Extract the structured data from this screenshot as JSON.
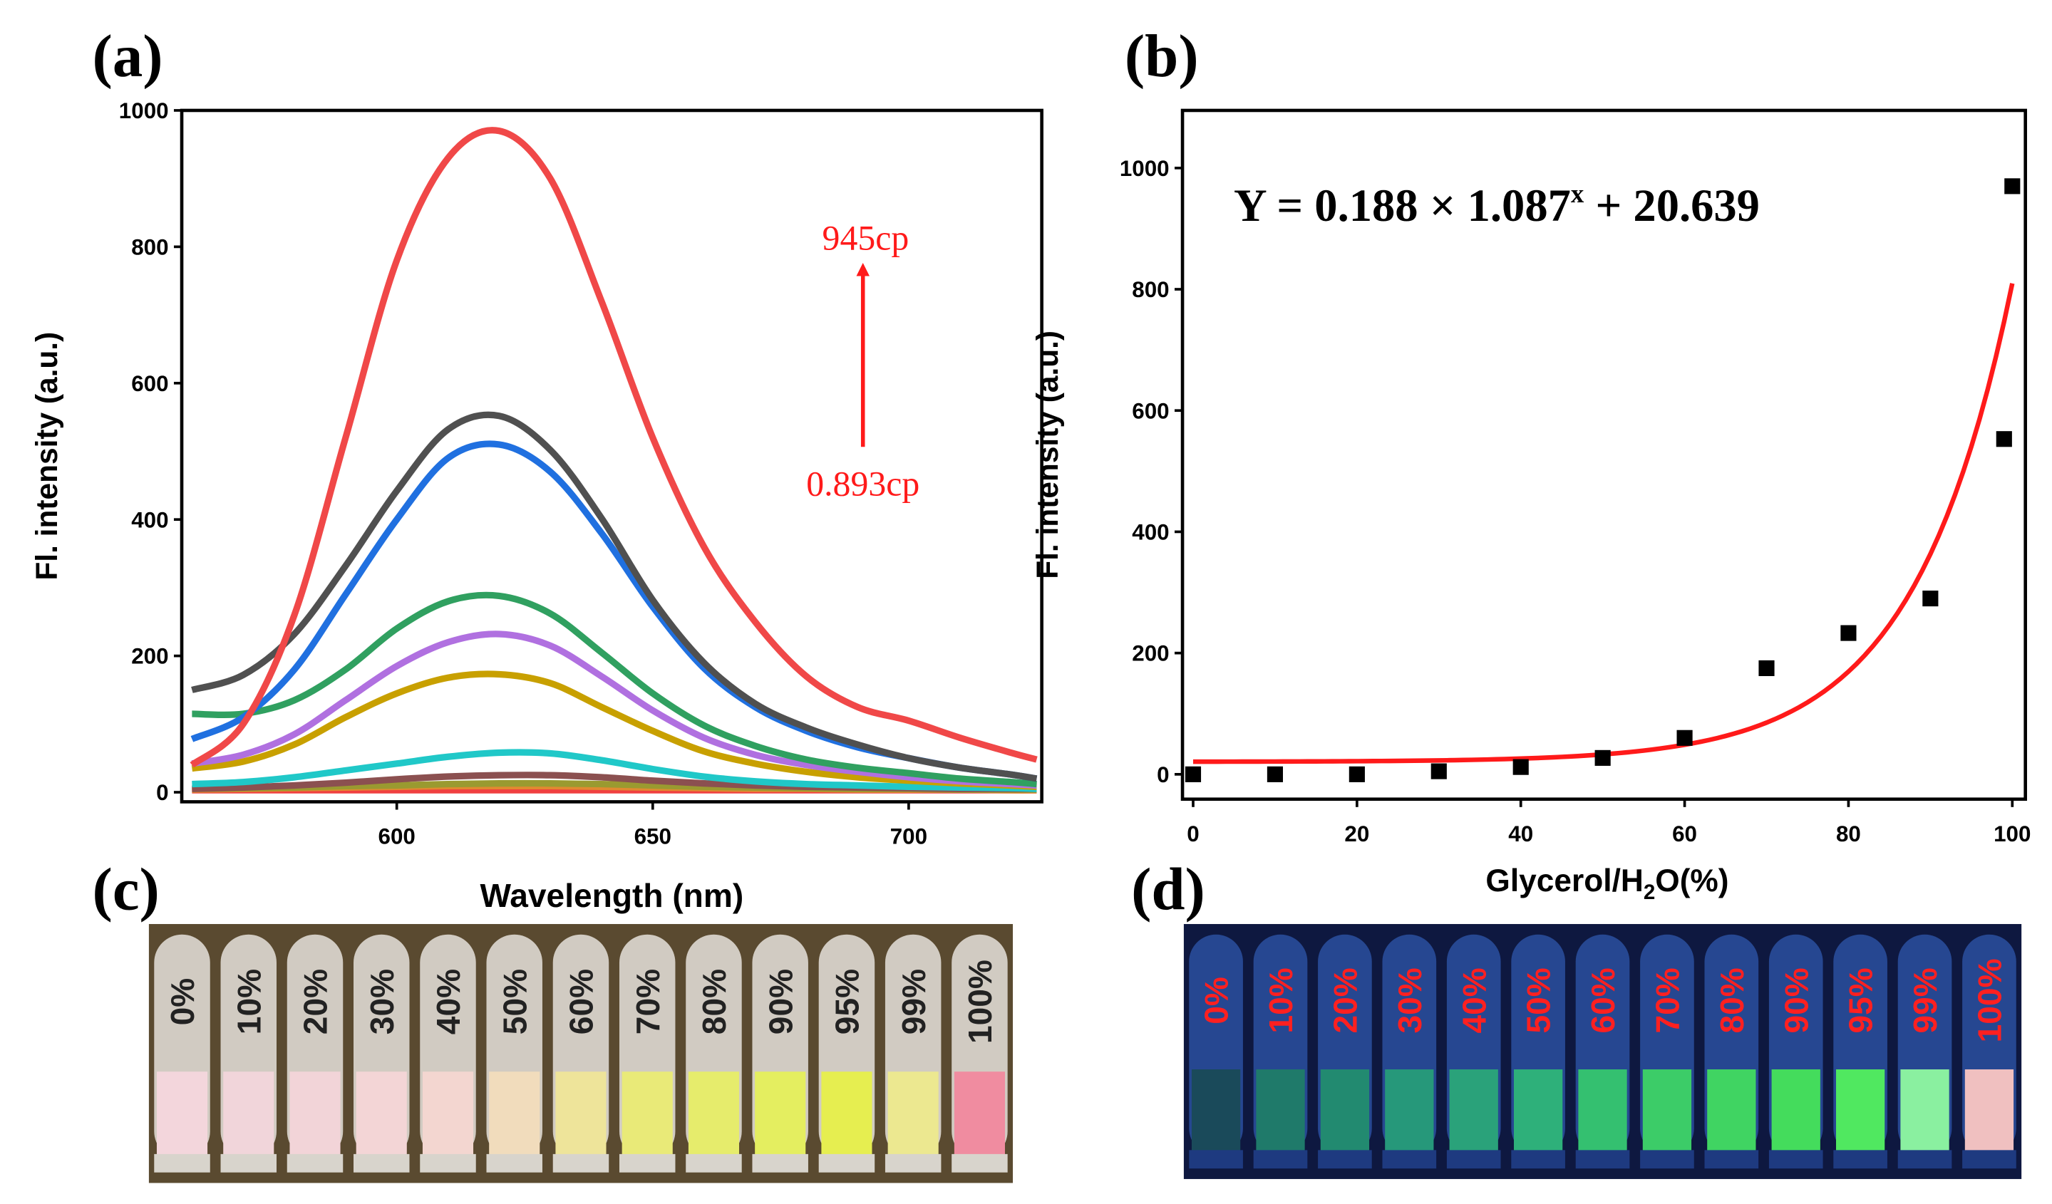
{
  "panels": {
    "a": "(a)",
    "b": "(b)",
    "c": "(c)",
    "d": "(d)"
  },
  "chart_data": [
    {
      "type": "line",
      "panel": "a",
      "xlabel": "Wavelength (nm)",
      "ylabel": "Fl. intensity (a.u.)",
      "xlim": [
        558,
        726
      ],
      "ylim": [
        -14,
        1000
      ],
      "xticks": [
        600,
        650,
        700
      ],
      "yticks": [
        0,
        200,
        400,
        600,
        800,
        1000
      ],
      "annotation": {
        "top": "945cp",
        "bottom": "0.893cp",
        "color": "#ff1a1a"
      },
      "x": [
        560,
        570,
        580,
        590,
        600,
        610,
        620,
        630,
        640,
        650,
        660,
        670,
        680,
        690,
        700,
        710,
        720,
        725
      ],
      "series": [
        {
          "name": "flat-red",
          "color": "#f04040",
          "values": [
            3,
            3,
            3,
            3,
            3,
            3,
            3,
            3,
            3,
            3,
            3,
            3,
            3,
            3,
            3,
            3,
            3,
            3
          ]
        },
        {
          "name": "orange",
          "color": "#e08a30",
          "values": [
            4,
            5,
            6,
            7,
            8,
            9,
            9,
            9,
            8,
            7,
            6,
            5,
            5,
            4,
            4,
            4,
            3,
            3
          ]
        },
        {
          "name": "olive",
          "color": "#9a9a30",
          "values": [
            5,
            6,
            7,
            9,
            10,
            12,
            13,
            13,
            12,
            10,
            8,
            7,
            6,
            5,
            5,
            4,
            4,
            4
          ]
        },
        {
          "name": "brown",
          "color": "#8b5050",
          "values": [
            5,
            7,
            10,
            14,
            19,
            23,
            25,
            25,
            22,
            17,
            13,
            10,
            8,
            7,
            6,
            5,
            5,
            5
          ]
        },
        {
          "name": "cyan",
          "color": "#20c8c8",
          "values": [
            12,
            15,
            22,
            32,
            42,
            52,
            58,
            57,
            47,
            34,
            23,
            16,
            12,
            10,
            8,
            7,
            6,
            5
          ]
        },
        {
          "name": "gold",
          "color": "#c8a000",
          "values": [
            35,
            45,
            70,
            110,
            145,
            168,
            173,
            160,
            125,
            90,
            60,
            42,
            30,
            22,
            17,
            13,
            10,
            8
          ]
        },
        {
          "name": "purple",
          "color": "#b070e0",
          "values": [
            42,
            55,
            85,
            135,
            185,
            220,
            232,
            215,
            170,
            120,
            80,
            55,
            40,
            30,
            22,
            16,
            12,
            10
          ]
        },
        {
          "name": "green",
          "color": "#30a060",
          "values": [
            115,
            115,
            135,
            180,
            240,
            280,
            288,
            262,
            205,
            145,
            98,
            68,
            48,
            36,
            28,
            20,
            15,
            12
          ]
        },
        {
          "name": "blue",
          "color": "#2070e0",
          "values": [
            78,
            110,
            180,
            290,
            400,
            490,
            510,
            470,
            380,
            272,
            182,
            125,
            90,
            66,
            50,
            36,
            26,
            20
          ]
        },
        {
          "name": "black",
          "color": "#505050",
          "values": [
            150,
            172,
            232,
            332,
            442,
            532,
            552,
            502,
            402,
            282,
            190,
            130,
            95,
            70,
            50,
            36,
            26,
            20
          ]
        },
        {
          "name": "red-945cp",
          "color": "#f04848",
          "values": [
            40,
            100,
            260,
            520,
            780,
            930,
            970,
            900,
            720,
            520,
            360,
            250,
            170,
            125,
            105,
            80,
            58,
            48
          ]
        }
      ]
    },
    {
      "type": "scatter",
      "panel": "b",
      "xlabel": "Glycerol/H",
      "xlabel_sub": "2",
      "xlabel_tail": "O(%)",
      "ylabel": "Fl. intensity (a.u.)",
      "xlim": [
        -1.3,
        101.6
      ],
      "ylim": [
        -41,
        1095
      ],
      "xticks": [
        0,
        20,
        40,
        60,
        80,
        100
      ],
      "yticks": [
        0,
        200,
        400,
        600,
        800,
        1000
      ],
      "equation": {
        "lhs": "Y = 0.188 × 1.087",
        "sup": "x",
        "rhs": " + 20.639"
      },
      "fit": {
        "a": 0.188,
        "b": 1.087,
        "c": 20.639,
        "color": "#ff1a1a"
      },
      "points": {
        "x": [
          0,
          10,
          20,
          30,
          40,
          50,
          60,
          70,
          80,
          90,
          99,
          100
        ],
        "y": [
          0,
          0,
          0,
          5,
          12,
          27,
          60,
          175,
          233,
          290,
          553,
          970
        ]
      }
    }
  ],
  "photos": {
    "c": {
      "labels": [
        "0%",
        "10%",
        "20%",
        "30%",
        "40%",
        "50%",
        "60%",
        "70%",
        "80%",
        "90%",
        "95%",
        "99%",
        "100%"
      ],
      "liquid": [
        "#f3d6dc",
        "#f1d5da",
        "#f2d4d8",
        "#f3d5d6",
        "#f3d6d0",
        "#f1dcbc",
        "#eee49a",
        "#e9ea78",
        "#e6ec6c",
        "#e4ee60",
        "#e6ee50",
        "#ece890",
        "#f08ca0"
      ],
      "label_color": "#222222",
      "background": "#5a4a30"
    },
    "d": {
      "labels": [
        "0%",
        "10%",
        "20%",
        "30%",
        "40%",
        "50%",
        "60%",
        "70%",
        "80%",
        "90%",
        "95%",
        "99%",
        "100%"
      ],
      "liquid": [
        "#1a4a5a",
        "#1f7a6a",
        "#228a70",
        "#26987a",
        "#2aa27a",
        "#2eb07a",
        "#34c070",
        "#3ccc68",
        "#40d462",
        "#44dc5c",
        "#50e860",
        "#8af0a0",
        "#f0c0c0"
      ],
      "label_color": "#ff2020",
      "background": "#0e1840"
    }
  }
}
